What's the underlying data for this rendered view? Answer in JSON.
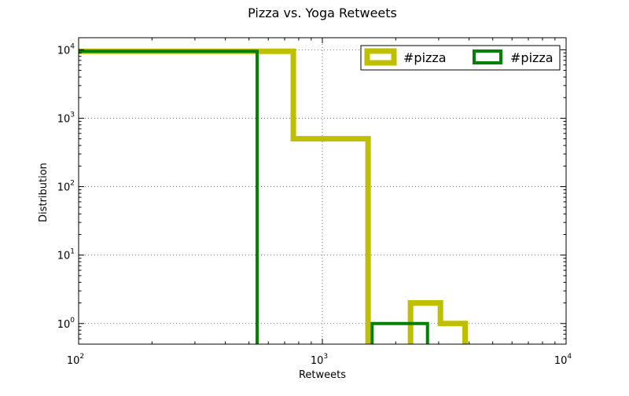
{
  "chart_data": {
    "type": "histogram-step",
    "title": "Pizza vs. Yoga Retweets",
    "xlabel": "Retweets",
    "ylabel": "Distribution",
    "xscale": "log",
    "yscale": "log",
    "xlim": [
      100,
      10000
    ],
    "ylim": [
      0.5,
      15000
    ],
    "grid": true,
    "legend_position": "top-right",
    "x_ticks": [
      {
        "value": 100,
        "base": "10",
        "exp": "2"
      },
      {
        "value": 1000,
        "base": "10",
        "exp": "3"
      },
      {
        "value": 10000,
        "base": "10",
        "exp": "4"
      }
    ],
    "y_ticks": [
      {
        "value": 1,
        "base": "10",
        "exp": "0"
      },
      {
        "value": 10,
        "base": "10",
        "exp": "1"
      },
      {
        "value": 100,
        "base": "10",
        "exp": "2"
      },
      {
        "value": 1000,
        "base": "10",
        "exp": "3"
      },
      {
        "value": 10000,
        "base": "10",
        "exp": "4"
      }
    ],
    "series": [
      {
        "name": "#pizza",
        "color": "#bfbf00",
        "edges": [
          2,
          760,
          1540,
          2300,
          3050,
          3850
        ],
        "values": [
          9500,
          500,
          0,
          2,
          1
        ]
      },
      {
        "name": "#pizza",
        "color": "#008000",
        "edges": [
          2,
          540,
          1070,
          1600,
          2700
        ],
        "values": [
          9500,
          0,
          0,
          1
        ]
      }
    ]
  }
}
